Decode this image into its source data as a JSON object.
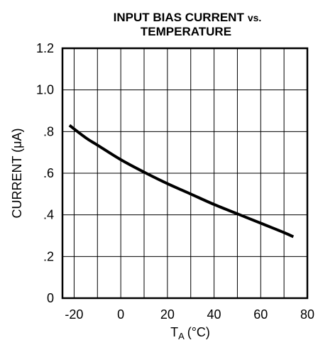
{
  "chart_data": {
    "type": "line",
    "title_line1": "INPUT BIAS CURRENT",
    "title_vs": "vs.",
    "title_line2": "TEMPERATURE",
    "xlabel_main": "T",
    "xlabel_sub": "A",
    "xlabel_unit": "(°C)",
    "ylabel": "CURRENT (μA)",
    "xlim": [
      -25,
      80
    ],
    "ylim": [
      0,
      1.2
    ],
    "x_ticks": [
      -20,
      0,
      20,
      40,
      60,
      80
    ],
    "x_tick_labels": [
      "-20",
      "0",
      "20",
      "40",
      "60",
      "80"
    ],
    "y_ticks": [
      0,
      0.2,
      0.4,
      0.6,
      0.8,
      1.0,
      1.2
    ],
    "y_tick_labels": [
      "0",
      ".2",
      ".4",
      ".6",
      ".8",
      "1.0",
      "1.2"
    ],
    "grid": true,
    "series": [
      {
        "x": [
          -22,
          -15,
          -10,
          0,
          10,
          20,
          30,
          40,
          50,
          60,
          70,
          74
        ],
        "values": [
          0.83,
          0.77,
          0.735,
          0.665,
          0.605,
          0.55,
          0.5,
          0.45,
          0.405,
          0.36,
          0.315,
          0.295
        ]
      }
    ]
  }
}
